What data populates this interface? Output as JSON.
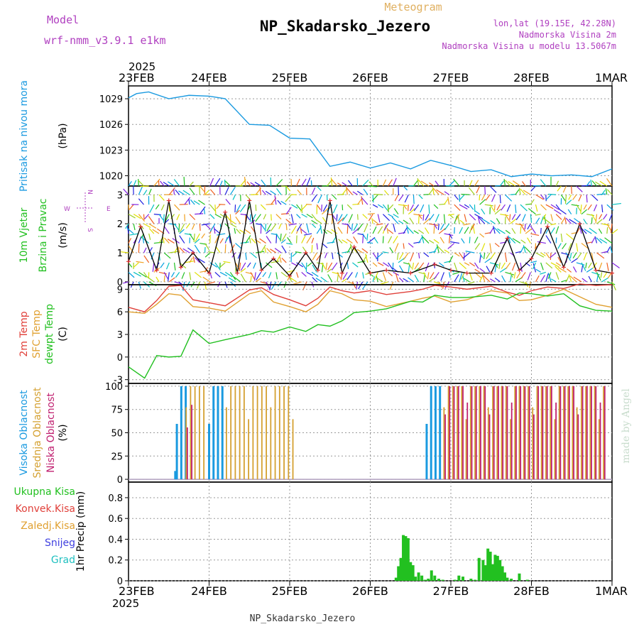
{
  "header": {
    "model_label": "Model",
    "model_name": "wrf-nmm_v3.9.1 e1km",
    "meteogram_label": "Meteogram",
    "station": "NP_Skadarsko_Jezero",
    "lonlat": "lon,lat (19.15E, 42.28N)",
    "elevation": "Nadmorska Visina 2m",
    "model_elevation": "Nadmorska Visina u modelu 13.5067m",
    "footer_station": "NP_Skadarsko_Jezero",
    "credit": "made by Angel"
  },
  "time_axis": {
    "year": "2025",
    "ticks": [
      "23FEB",
      "24FEB",
      "25FEB",
      "26FEB",
      "27FEB",
      "28FEB",
      "1MAR"
    ]
  },
  "colors": {
    "pressure": "#1a9ae0",
    "t2m": "#e0403a",
    "sfc": "#e0a030",
    "dewpt": "#22c020",
    "high_cloud": "#1a9ae0",
    "mid_cloud": "#d4a030",
    "low_cloud": "#c02070",
    "precip": "#22c020",
    "wind_speed": "#000000",
    "wind_marker": "#e03030",
    "arrow_hues": [
      "#8020e0",
      "#2020e0",
      "#00a0e0",
      "#00c0c0",
      "#20c020",
      "#a0d020",
      "#e0e000",
      "#f0a020",
      "#f06020"
    ]
  },
  "chart_data": [
    {
      "type": "line",
      "title": "",
      "ylabel_lines": [
        "Pritisak na nivou mora",
        "(hPa)"
      ],
      "ylim": [
        1018.8,
        1030.5
      ],
      "yticks": [
        "1029",
        "1026",
        "1023",
        "1020"
      ],
      "grid": true,
      "x": [
        0,
        0.1,
        0.25,
        0.5,
        0.75,
        1.0,
        1.2,
        1.5,
        1.75,
        2.0,
        2.25,
        2.5,
        2.75,
        3.0,
        3.25,
        3.5,
        3.75,
        4.0,
        4.25,
        4.5,
        4.75,
        5.0,
        5.25,
        5.5,
        5.75,
        6.0
      ],
      "series": [
        {
          "name": "",
          "values": [
            1029.1,
            1029.6,
            1029.8,
            1029.0,
            1029.4,
            1029.3,
            1029.0,
            1026.0,
            1025.9,
            1024.4,
            1024.3,
            1021.1,
            1021.6,
            1020.9,
            1021.5,
            1020.8,
            1021.8,
            1021.2,
            1020.5,
            1020.7,
            1019.9,
            1020.2,
            1020.0,
            1020.1,
            1019.9,
            1020.8
          ]
        }
      ]
    },
    {
      "type": "line",
      "title": "",
      "ylabel_lines": [
        "10m Vjetar",
        "Brzina i Pravac",
        "(m/s)"
      ],
      "compass": {
        "n": "N",
        "s": "S",
        "e": "E",
        "w": "W"
      },
      "ylim": [
        -0.1,
        3.3
      ],
      "yticks": [
        "3",
        "2",
        "1",
        "0"
      ],
      "grid": true,
      "x": [
        0,
        0.15,
        0.35,
        0.5,
        0.65,
        0.8,
        1.0,
        1.2,
        1.35,
        1.5,
        1.65,
        1.8,
        2.0,
        2.2,
        2.35,
        2.5,
        2.65,
        2.8,
        3.0,
        3.2,
        3.5,
        3.8,
        4.0,
        4.2,
        4.5,
        4.7,
        4.85,
        5.0,
        5.2,
        5.4,
        5.6,
        5.8,
        6.0
      ],
      "series": [
        {
          "name": "",
          "values": [
            0.7,
            1.9,
            0.4,
            2.8,
            0.5,
            1.0,
            0.3,
            2.4,
            0.3,
            2.8,
            0.4,
            0.8,
            0.2,
            1.0,
            0.4,
            2.8,
            0.3,
            1.2,
            0.3,
            0.4,
            0.3,
            0.6,
            0.4,
            0.3,
            0.3,
            1.5,
            0.4,
            0.8,
            1.9,
            0.5,
            2.0,
            0.4,
            0.3
          ]
        }
      ]
    },
    {
      "type": "line",
      "title": "",
      "ylabel_lines": [
        "2m Temp",
        "SFC Temp",
        "dewpt Temp",
        "(C)"
      ],
      "ylim": [
        -3.5,
        9.6
      ],
      "yticks": [
        "9",
        "6",
        "3",
        "0",
        "-3"
      ],
      "grid": true,
      "x": [
        0,
        0.2,
        0.35,
        0.5,
        0.65,
        0.8,
        1.0,
        1.2,
        1.5,
        1.65,
        1.8,
        2.0,
        2.2,
        2.35,
        2.5,
        2.65,
        2.8,
        3.0,
        3.2,
        3.5,
        3.65,
        3.8,
        4.0,
        4.2,
        4.5,
        4.7,
        4.85,
        5.0,
        5.2,
        5.4,
        5.6,
        5.8,
        6.0
      ],
      "series": [
        {
          "name": "2m Temp",
          "values": [
            6.6,
            6.0,
            7.5,
            9.4,
            9.5,
            7.6,
            7.2,
            6.8,
            8.9,
            9.2,
            8.3,
            7.6,
            6.8,
            7.8,
            9.3,
            8.8,
            8.5,
            8.8,
            8.3,
            8.7,
            9.0,
            9.5,
            9.3,
            9.0,
            9.4,
            8.6,
            8.2,
            8.8,
            9.3,
            9.1,
            9.7,
            9.5,
            9.6
          ]
        },
        {
          "name": "SFC Temp",
          "values": [
            6.0,
            5.8,
            7.0,
            8.4,
            8.2,
            6.7,
            6.5,
            6.1,
            8.4,
            8.8,
            7.3,
            6.7,
            6.0,
            7.0,
            8.8,
            8.4,
            7.6,
            7.4,
            6.7,
            7.4,
            7.8,
            8.1,
            7.3,
            7.6,
            8.8,
            8.5,
            7.5,
            7.6,
            8.2,
            9.0,
            8.0,
            7.0,
            6.6
          ]
        },
        {
          "name": "dewpt Temp",
          "values": [
            -1.3,
            -2.8,
            0.2,
            0.0,
            0.1,
            3.6,
            1.8,
            2.3,
            3.0,
            3.5,
            3.3,
            4.0,
            3.4,
            4.3,
            4.1,
            4.8,
            5.9,
            6.1,
            6.4,
            7.4,
            7.3,
            8.2,
            7.9,
            7.9,
            8.2,
            7.7,
            8.5,
            8.4,
            8.1,
            8.4,
            6.8,
            6.2,
            6.1
          ]
        }
      ]
    },
    {
      "type": "bar",
      "title": "",
      "ylabel_lines": [
        "Visoka Oblacnost",
        "Srednja Oblacnost",
        "Niska Oblacnost",
        "(%)"
      ],
      "ylim": [
        -3,
        103
      ],
      "yticks": [
        "100",
        "75",
        "50",
        "25",
        "0"
      ],
      "grid": true,
      "segments": [
        {
          "name": "Visoka Oblacnost",
          "values": [
            {
              "from": 0.6,
              "to": 0.72,
              "value": 100
            },
            {
              "from": 0.58,
              "to": 0.62,
              "value": 15
            },
            {
              "from": 1.0,
              "to": 1.2,
              "value": 100
            },
            {
              "from": 3.7,
              "to": 3.9,
              "value": 100
            }
          ]
        },
        {
          "name": "Srednja Oblacnost",
          "values": [
            {
              "from": 0.7,
              "to": 0.95,
              "value": 100
            },
            {
              "from": 1.2,
              "to": 2.05,
              "value": 100
            },
            {
              "from": 3.9,
              "to": 5.9,
              "value": 100
            }
          ]
        },
        {
          "name": "Niska Oblacnost",
          "values": [
            {
              "from": 0.7,
              "to": 0.8,
              "value": 80
            },
            {
              "from": 3.9,
              "to": 5.9,
              "value": 100
            }
          ]
        }
      ]
    },
    {
      "type": "bar",
      "title": "",
      "ylabel_lines": [
        "1hr Precip (mm)"
      ],
      "legend_lines": [
        "Ukupna Kisa",
        "Konvek.Kisa",
        "Zaledj.Kisa",
        "Snijeg",
        "Grad"
      ],
      "ylim": [
        0,
        0.95
      ],
      "yticks": [
        "0.8",
        "0.6",
        "0.4",
        "0.2",
        "0"
      ],
      "grid": true,
      "x": [
        3.32,
        3.35,
        3.38,
        3.41,
        3.44,
        3.47,
        3.5,
        3.53,
        3.56,
        3.6,
        3.64,
        3.68,
        3.72,
        3.76,
        3.8,
        3.85,
        3.9,
        4.05,
        4.1,
        4.15,
        4.25,
        4.3,
        4.35,
        4.4,
        4.43,
        4.46,
        4.49,
        4.52,
        4.55,
        4.58,
        4.61,
        4.64,
        4.67,
        4.7,
        4.75,
        4.85,
        4.95
      ],
      "values": [
        0.03,
        0.14,
        0.22,
        0.44,
        0.43,
        0.41,
        0.18,
        0.15,
        0.04,
        0.08,
        0.05,
        0.01,
        0.02,
        0.1,
        0.05,
        0.02,
        0.01,
        0.01,
        0.05,
        0.04,
        0.02,
        0.01,
        0.22,
        0.2,
        0.15,
        0.31,
        0.28,
        0.16,
        0.25,
        0.24,
        0.2,
        0.14,
        0.08,
        0.03,
        0.02,
        0.07,
        0.01
      ]
    }
  ]
}
